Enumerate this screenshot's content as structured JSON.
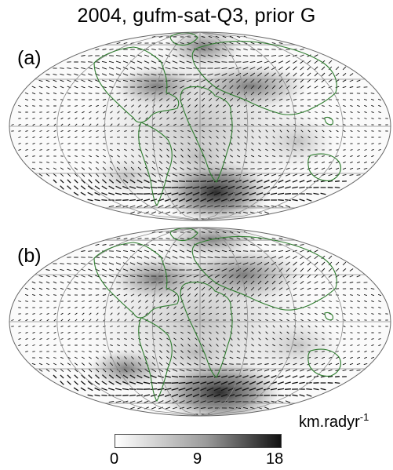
{
  "figure": {
    "title": "2004, gufm-sat-Q3, prior G",
    "panels": [
      {
        "label": "(a)"
      },
      {
        "label": "(b)"
      }
    ]
  },
  "colorbar": {
    "unit_main": "km.radyr",
    "unit_exp": "-1",
    "ticks": [
      "0",
      "9",
      "18"
    ],
    "color_low": "#ffffff",
    "color_high": "#111111"
  },
  "colors": {
    "coastline": "#2f7d2f",
    "grid": "#8a8a8a",
    "arrows": "#111111"
  }
}
